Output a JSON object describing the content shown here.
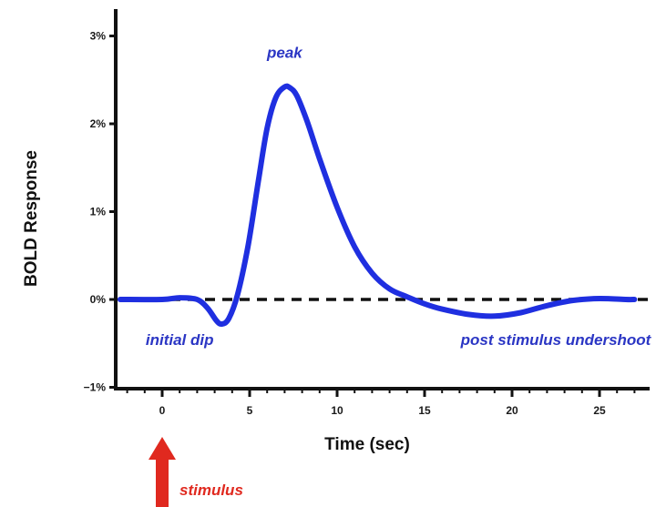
{
  "chart_data": {
    "type": "line",
    "title": "",
    "xlabel": "Time (sec)",
    "ylabel": "BOLD Response",
    "xlim": [
      -2.5,
      27.5
    ],
    "ylim": [
      -1,
      3.2
    ],
    "x_ticks": [
      0,
      5,
      10,
      15,
      20,
      25
    ],
    "x_tick_labels": [
      "0",
      "5",
      "10",
      "15",
      "20",
      "25"
    ],
    "y_ticks": [
      -1,
      0,
      1,
      2,
      3
    ],
    "y_tick_labels": [
      "−1%",
      "0%",
      "1%",
      "2%",
      "3%"
    ],
    "baseline": 0,
    "grid": false,
    "series": [
      {
        "color": "#1f2fe0",
        "x": [
          -2.4,
          0,
          1,
          2,
          2.6,
          3.1,
          3.4,
          3.8,
          4.3,
          4.9,
          5.5,
          6.0,
          6.5,
          7.0,
          7.3,
          7.7,
          8.3,
          9.0,
          10.0,
          11.0,
          12.0,
          13.0,
          14.0,
          15.0,
          16.0,
          17.5,
          19.0,
          20.5,
          22.0,
          23.5,
          25.0,
          26.5,
          27.0
        ],
        "y": [
          0,
          0,
          0.02,
          0,
          -0.1,
          -0.24,
          -0.28,
          -0.22,
          0.05,
          0.6,
          1.35,
          1.95,
          2.3,
          2.42,
          2.41,
          2.32,
          2.02,
          1.6,
          1.05,
          0.6,
          0.3,
          0.12,
          0.03,
          -0.05,
          -0.11,
          -0.17,
          -0.19,
          -0.15,
          -0.07,
          -0.01,
          0.01,
          0.0,
          0.0
        ]
      }
    ],
    "annotations": [
      {
        "text": "peak",
        "x": 7.0,
        "y": 2.75,
        "color": "#2b36c4"
      },
      {
        "text": "initial dip",
        "x": 1.0,
        "y": -0.52,
        "color": "#2b36c4"
      },
      {
        "text": "post stimulus undershoot",
        "x": 22.5,
        "y": -0.52,
        "color": "#2b36c4"
      },
      {
        "text": "stimulus",
        "color": "#e0291f"
      }
    ],
    "stimulus_time": 0,
    "colors": {
      "curve": "#1f2fe0",
      "annotation": "#2b36c4",
      "stimulus": "#e0291f",
      "axis": "#111111"
    }
  }
}
